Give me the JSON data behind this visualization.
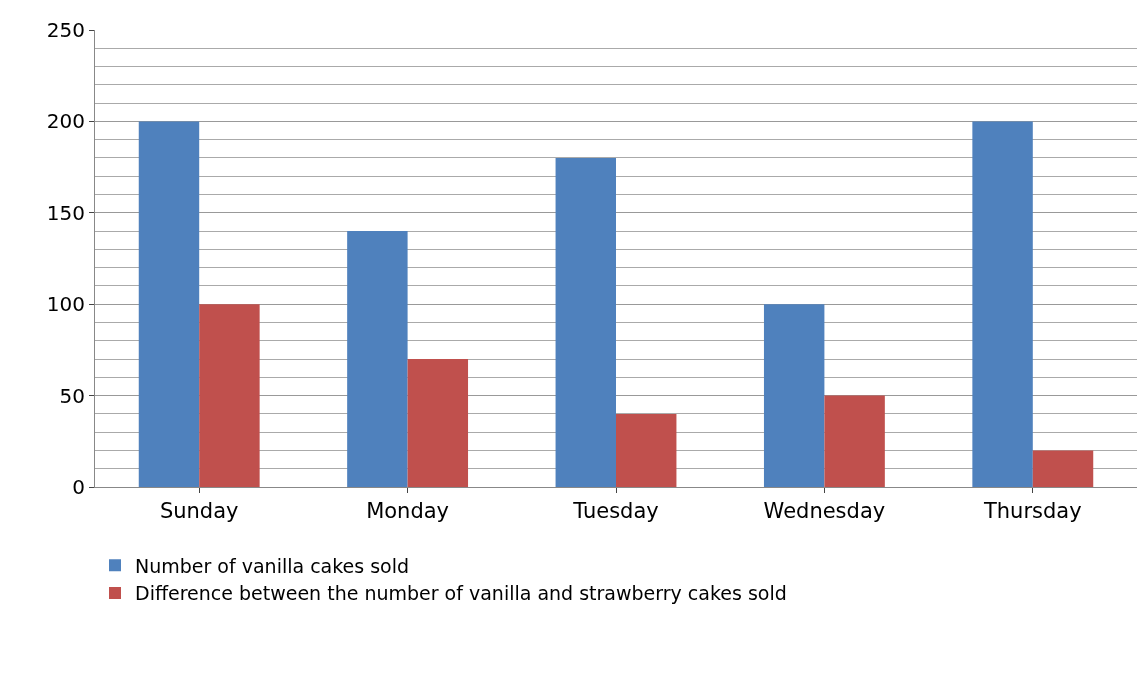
{
  "chart_data": {
    "type": "bar",
    "categories": [
      "Sunday",
      "Monday",
      "Tuesday",
      "Wednesday",
      "Thursday"
    ],
    "series": [
      {
        "name": "Number of vanilla cakes sold",
        "color": "#4f81bd",
        "values": [
          200,
          140,
          180,
          100,
          200
        ]
      },
      {
        "name": "Difference between the number of vanilla and strawberry cakes sold",
        "color": "#c0504d",
        "values": [
          100,
          70,
          40,
          50,
          20
        ]
      }
    ],
    "ylim": [
      0,
      250
    ],
    "yticks": [
      0,
      50,
      100,
      150,
      200,
      250
    ],
    "grid": "y",
    "legend": "bottom"
  }
}
